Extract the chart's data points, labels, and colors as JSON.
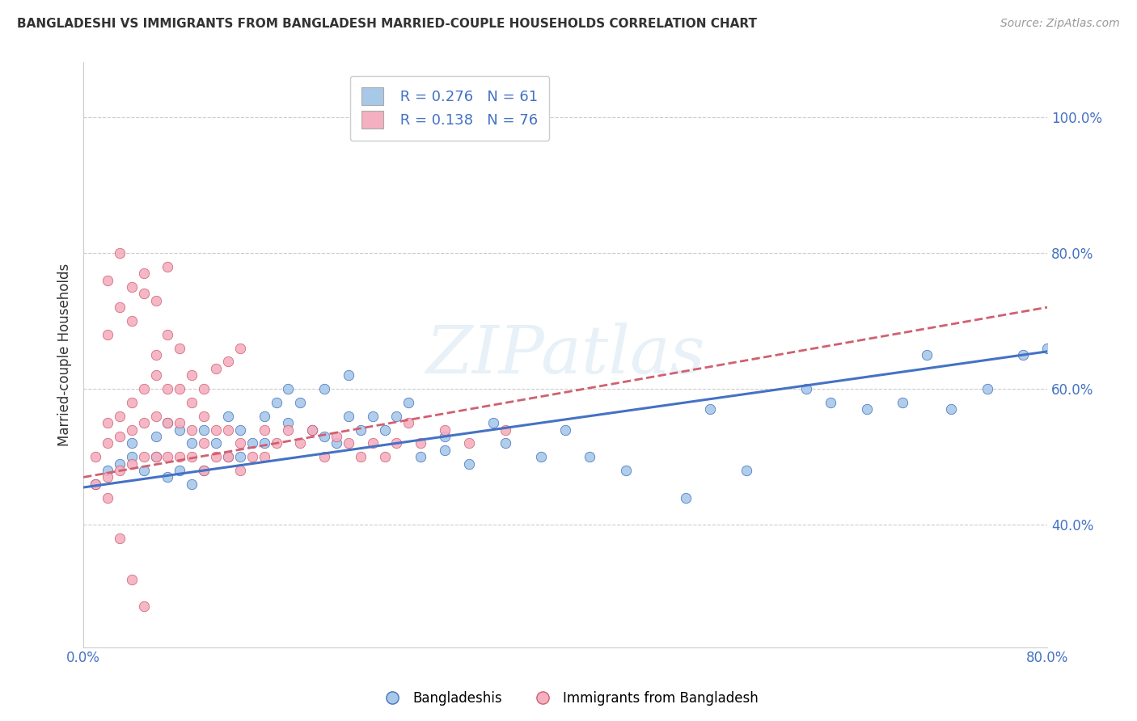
{
  "title": "BANGLADESHI VS IMMIGRANTS FROM BANGLADESH MARRIED-COUPLE HOUSEHOLDS CORRELATION CHART",
  "source": "Source: ZipAtlas.com",
  "xlabel": "",
  "ylabel": "Married-couple Households",
  "xlim": [
    0.0,
    0.8
  ],
  "ylim": [
    0.22,
    1.08
  ],
  "x_ticks": [
    0.0,
    0.1,
    0.2,
    0.3,
    0.4,
    0.5,
    0.6,
    0.7,
    0.8
  ],
  "x_tick_labels": [
    "0.0%",
    "",
    "",
    "",
    "",
    "",
    "",
    "",
    "80.0%"
  ],
  "y_ticks": [
    0.4,
    0.6,
    0.8,
    1.0
  ],
  "y_tick_labels": [
    "40.0%",
    "60.0%",
    "80.0%",
    "100.0%"
  ],
  "legend_entry1": "R = 0.276   N = 61",
  "legend_entry2": "R = 0.138   N = 76",
  "legend_label1": "Bangladeshis",
  "legend_label2": "Immigrants from Bangladesh",
  "scatter1_color": "#a8c8e8",
  "scatter2_color": "#f4b0c0",
  "line1_color": "#4472c4",
  "line2_color": "#d06070",
  "watermark": "ZIPatlas",
  "blue_scatter_x": [
    0.01,
    0.02,
    0.03,
    0.04,
    0.04,
    0.05,
    0.06,
    0.06,
    0.07,
    0.07,
    0.08,
    0.08,
    0.09,
    0.09,
    0.1,
    0.1,
    0.11,
    0.12,
    0.12,
    0.13,
    0.13,
    0.14,
    0.15,
    0.15,
    0.16,
    0.17,
    0.17,
    0.18,
    0.19,
    0.2,
    0.2,
    0.21,
    0.22,
    0.22,
    0.23,
    0.24,
    0.25,
    0.26,
    0.27,
    0.28,
    0.3,
    0.3,
    0.32,
    0.34,
    0.35,
    0.38,
    0.4,
    0.42,
    0.45,
    0.5,
    0.52,
    0.55,
    0.6,
    0.62,
    0.65,
    0.68,
    0.7,
    0.72,
    0.75,
    0.78,
    0.8
  ],
  "blue_scatter_y": [
    0.46,
    0.48,
    0.49,
    0.5,
    0.52,
    0.48,
    0.5,
    0.53,
    0.47,
    0.55,
    0.48,
    0.54,
    0.46,
    0.52,
    0.48,
    0.54,
    0.52,
    0.5,
    0.56,
    0.5,
    0.54,
    0.52,
    0.56,
    0.52,
    0.58,
    0.6,
    0.55,
    0.58,
    0.54,
    0.53,
    0.6,
    0.52,
    0.56,
    0.62,
    0.54,
    0.56,
    0.54,
    0.56,
    0.58,
    0.5,
    0.51,
    0.53,
    0.49,
    0.55,
    0.52,
    0.5,
    0.54,
    0.5,
    0.48,
    0.44,
    0.57,
    0.48,
    0.6,
    0.58,
    0.57,
    0.58,
    0.65,
    0.57,
    0.6,
    0.65,
    0.66
  ],
  "pink_scatter_x": [
    0.01,
    0.01,
    0.02,
    0.02,
    0.02,
    0.03,
    0.03,
    0.03,
    0.04,
    0.04,
    0.04,
    0.05,
    0.05,
    0.05,
    0.06,
    0.06,
    0.06,
    0.07,
    0.07,
    0.07,
    0.08,
    0.08,
    0.08,
    0.09,
    0.09,
    0.09,
    0.1,
    0.1,
    0.1,
    0.11,
    0.11,
    0.12,
    0.12,
    0.13,
    0.13,
    0.14,
    0.15,
    0.15,
    0.16,
    0.17,
    0.18,
    0.19,
    0.2,
    0.21,
    0.22,
    0.23,
    0.24,
    0.25,
    0.26,
    0.27,
    0.28,
    0.3,
    0.32,
    0.35,
    0.02,
    0.03,
    0.04,
    0.05,
    0.06,
    0.07,
    0.08,
    0.09,
    0.1,
    0.11,
    0.12,
    0.13,
    0.02,
    0.03,
    0.04,
    0.05,
    0.06,
    0.07,
    0.02,
    0.03,
    0.04,
    0.05
  ],
  "pink_scatter_y": [
    0.46,
    0.5,
    0.47,
    0.52,
    0.55,
    0.48,
    0.53,
    0.56,
    0.49,
    0.54,
    0.58,
    0.5,
    0.55,
    0.6,
    0.5,
    0.56,
    0.62,
    0.5,
    0.55,
    0.6,
    0.5,
    0.55,
    0.6,
    0.5,
    0.54,
    0.58,
    0.48,
    0.52,
    0.56,
    0.5,
    0.54,
    0.5,
    0.54,
    0.48,
    0.52,
    0.5,
    0.5,
    0.54,
    0.52,
    0.54,
    0.52,
    0.54,
    0.5,
    0.53,
    0.52,
    0.5,
    0.52,
    0.5,
    0.52,
    0.55,
    0.52,
    0.54,
    0.52,
    0.54,
    0.68,
    0.72,
    0.7,
    0.74,
    0.65,
    0.68,
    0.66,
    0.62,
    0.6,
    0.63,
    0.64,
    0.66,
    0.76,
    0.8,
    0.75,
    0.77,
    0.73,
    0.78,
    0.44,
    0.38,
    0.32,
    0.28
  ],
  "line1_x": [
    0.0,
    0.8
  ],
  "line1_y": [
    0.455,
    0.655
  ],
  "line2_x": [
    0.0,
    0.8
  ],
  "line2_y": [
    0.47,
    0.72
  ],
  "bg_color": "#ffffff",
  "grid_color": "#cccccc"
}
